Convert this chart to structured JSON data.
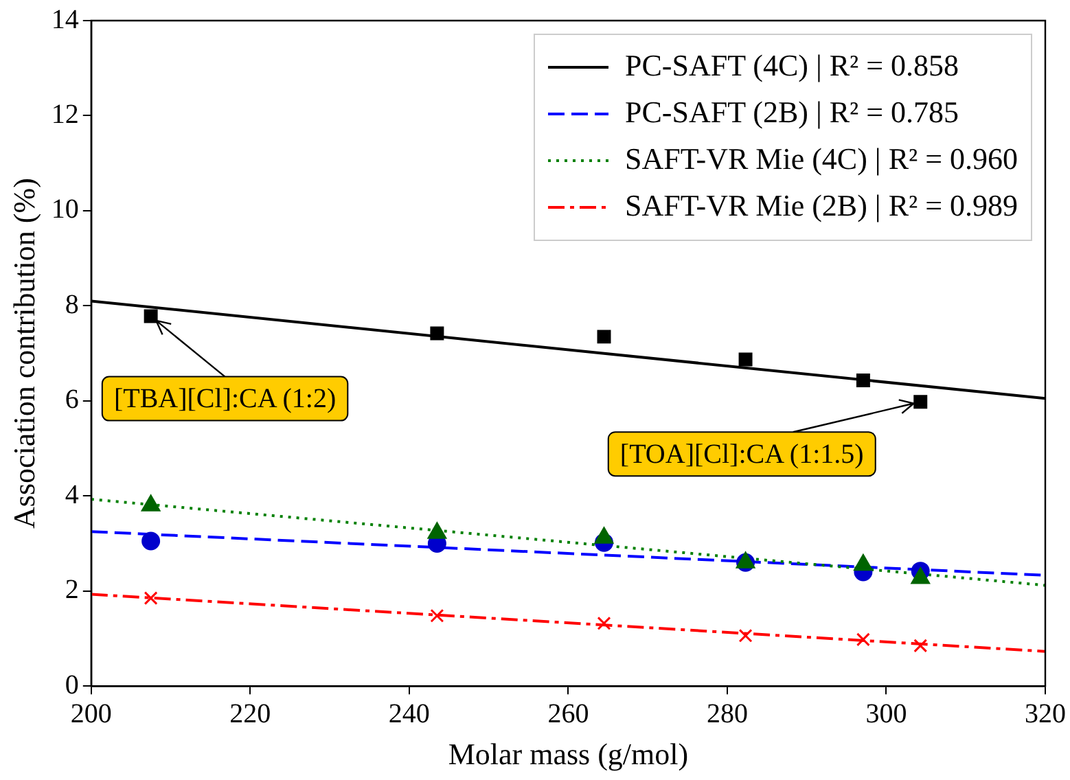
{
  "chart_data": {
    "type": "scatter",
    "xlabel": "Molar mass (g/mol)",
    "ylabel": "Association contribution (%)",
    "xlim": [
      200,
      320
    ],
    "xticks": [
      200,
      220,
      240,
      260,
      280,
      300,
      320
    ],
    "ylim": [
      0,
      14
    ],
    "yticks": [
      0,
      2,
      4,
      6,
      8,
      10,
      12,
      14
    ],
    "grid": false,
    "legend": "top right",
    "series": [
      {
        "name": "PC-SAFT (4C) | R² = 0.858",
        "type": "line",
        "x": [
          200,
          320
        ],
        "values": [
          8.1,
          6.05
        ],
        "color": "#000000",
        "line_style": "solid",
        "marker": "none"
      },
      {
        "name": "PC-SAFT (2B) | R² = 0.785",
        "type": "line",
        "x": [
          200,
          320
        ],
        "values": [
          3.25,
          2.33
        ],
        "color": "#0000ff",
        "line_style": "dashed",
        "marker": "none"
      },
      {
        "name": "SAFT-VR Mie (4C) | R² = 0.960",
        "type": "line",
        "x": [
          200,
          320
        ],
        "values": [
          3.93,
          2.12
        ],
        "color": "#008000",
        "line_style": "dotted",
        "marker": "none"
      },
      {
        "name": "SAFT-VR Mie (2B) | R² = 0.989",
        "type": "line",
        "x": [
          200,
          320
        ],
        "values": [
          1.93,
          0.73
        ],
        "color": "#ff0000",
        "line_style": "dashdot",
        "marker": "none"
      },
      {
        "type": "scatter",
        "x": [
          207.5,
          243.5,
          264.5,
          282.3,
          297.1,
          304.3
        ],
        "values": [
          7.78,
          7.42,
          7.35,
          6.87,
          6.43,
          5.98
        ],
        "color": "#000000",
        "marker": "square"
      },
      {
        "type": "scatter",
        "x": [
          207.5,
          243.5,
          264.5,
          282.3,
          297.1,
          304.3
        ],
        "values": [
          3.05,
          3.0,
          3.02,
          2.6,
          2.4,
          2.42
        ],
        "color": "#0000cc",
        "marker": "circle"
      },
      {
        "type": "scatter",
        "x": [
          207.5,
          243.5,
          264.5,
          282.3,
          297.1,
          304.3
        ],
        "values": [
          3.8,
          3.22,
          3.12,
          2.6,
          2.55,
          2.27
        ],
        "color": "#006400",
        "marker": "triangle"
      },
      {
        "type": "scatter",
        "x": [
          207.5,
          243.5,
          264.5,
          282.3,
          297.1,
          304.3
        ],
        "values": [
          1.85,
          1.48,
          1.32,
          1.06,
          0.98,
          0.85
        ],
        "color": "#ff0000",
        "marker": "cross"
      }
    ],
    "annotations": [
      {
        "text": "[TBA][Cl]:CA (1:2)",
        "x": 207.5,
        "y": 7.78
      },
      {
        "text": "[TOA][Cl]:CA (1:1.5)",
        "x": 304.3,
        "y": 5.98
      }
    ]
  }
}
